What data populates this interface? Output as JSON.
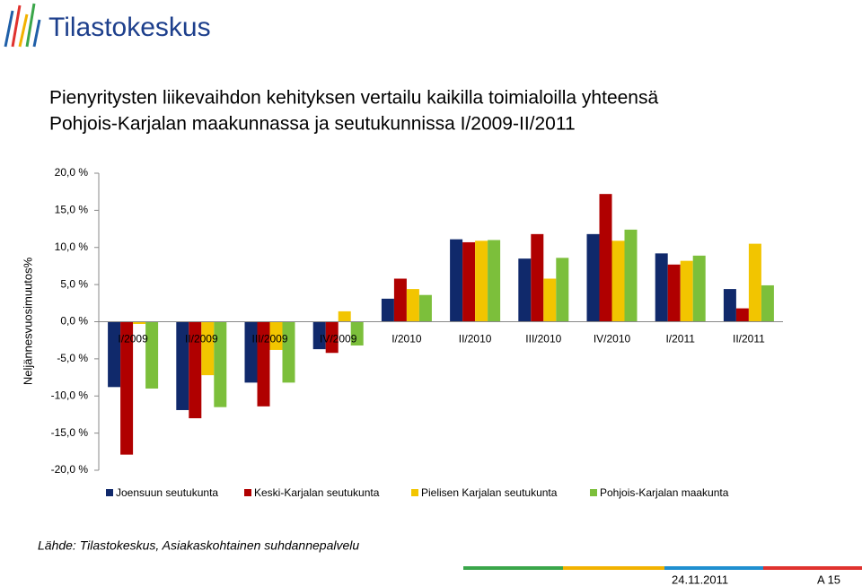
{
  "header": {
    "logo": "Tilastokeskus"
  },
  "chart_data": {
    "type": "bar",
    "title": [
      "Pienyritysten liikevaihdon kehityksen vertailu kaikilla toimialoilla yhteensä",
      "Pohjois-Karjalan maakunnassa ja seutukunnissa I/2009-II/2011"
    ],
    "y_label": "Neljännesvuosimuutos%",
    "categories": [
      "I/2009",
      "II/2009",
      "III/2009",
      "IV/2009",
      "I/2010",
      "II/2010",
      "III/2010",
      "IV/2010",
      "I/2011",
      "II/2011"
    ],
    "series": [
      {
        "name": "Joensuun seutukunta",
        "color": "#10296b",
        "values": [
          -8.8,
          -11.9,
          -8.2,
          -3.7,
          3.1,
          11.1,
          8.5,
          11.8,
          9.2,
          4.4
        ]
      },
      {
        "name": "Keski-Karjalan seutukunta",
        "color": "#b00000",
        "values": [
          -17.9,
          -13.0,
          -11.4,
          -4.2,
          5.8,
          10.7,
          11.8,
          17.2,
          7.7,
          1.8
        ]
      },
      {
        "name": "Pielisen Karjalan seutukunta",
        "color": "#f2c500",
        "values": [
          -0.3,
          -7.2,
          -3.8,
          1.4,
          4.4,
          10.9,
          5.8,
          10.9,
          8.2,
          10.5
        ]
      },
      {
        "name": "Pohjois-Karjalan maakunta",
        "color": "#7cbf3b",
        "values": [
          -9.0,
          -11.5,
          -8.2,
          -3.2,
          3.6,
          11.0,
          8.6,
          12.4,
          8.9,
          4.9
        ]
      }
    ],
    "ylim": [
      -20,
      20
    ],
    "yticks": [
      {
        "value": -20,
        "label": "-20,0 %"
      },
      {
        "value": -15,
        "label": "-15,0 %"
      },
      {
        "value": -10,
        "label": "-10,0 %"
      },
      {
        "value": -5,
        "label": "-5,0 %"
      },
      {
        "value": 0,
        "label": "0,0 %"
      },
      {
        "value": 5,
        "label": "5,0 %"
      },
      {
        "value": 10,
        "label": "10,0 %"
      },
      {
        "value": 15,
        "label": "15,0 %"
      },
      {
        "value": 20,
        "label": "20,0 %"
      }
    ],
    "legend": "bottom"
  },
  "footer": {
    "source": "Lähde: Tilastokeskus, Asiakaskohtainen suhdannepalvelu",
    "date": "24.11.2011",
    "page": "A 15"
  }
}
